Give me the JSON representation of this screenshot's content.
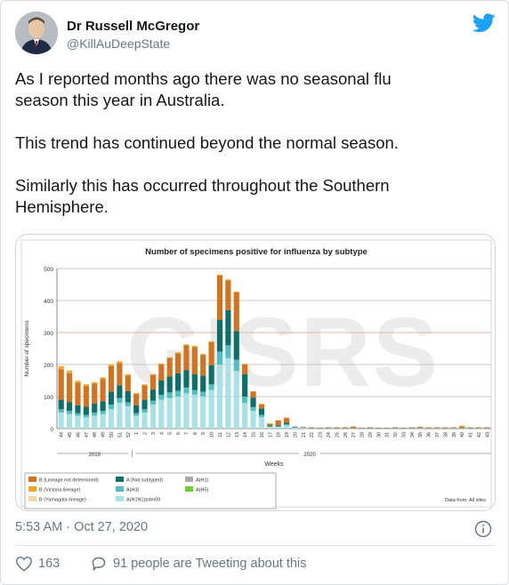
{
  "author": {
    "display_name": "Dr Russell McGregor",
    "handle": "@KillAuDeepState"
  },
  "tweet": {
    "paragraphs": [
      [
        "As I reported months ago there was no seasonal flu",
        "season this year in Australia."
      ],
      [
        "This trend has continued beyond the normal season."
      ],
      [
        "Similarly this has occurred throughout the Southern",
        "Hemisphere."
      ]
    ]
  },
  "footer": {
    "timestamp": "5:53 AM · Oct 27, 2020",
    "likes_count": "163",
    "reply_text": "91 people are Tweeting about this"
  },
  "colors": {
    "twitter_blue": "#1da1f2",
    "text_gray": "#657786",
    "heart": "#657786"
  },
  "chart_data": {
    "type": "bar",
    "title": "Number of specimens positive for influenza by subtype",
    "ylabel": "Number of specimens",
    "xlabel": "Weeks",
    "ylim": [
      0,
      500
    ],
    "yticks": [
      0,
      100,
      200,
      300,
      400,
      500
    ],
    "year_labels": [
      "2019",
      "2020"
    ],
    "watermark": "GISRS",
    "source_note": "Data from: All sites",
    "categories": [
      "44",
      "45",
      "46",
      "47",
      "48",
      "49",
      "50",
      "51",
      "52",
      "1",
      "2",
      "3",
      "4",
      "5",
      "6",
      "7",
      "8",
      "9",
      "10",
      "11",
      "12",
      "13",
      "14",
      "15",
      "16",
      "17",
      "18",
      "19",
      "20",
      "21",
      "22",
      "23",
      "24",
      "25",
      "26",
      "27",
      "28",
      "29",
      "30",
      "31",
      "32",
      "33",
      "34",
      "35",
      "36",
      "37",
      "38",
      "39",
      "40",
      "41",
      "42",
      "43"
    ],
    "series": [
      {
        "name": "A(H1N1)pdm09",
        "color": "#a8e2e6",
        "values": [
          50,
          45,
          40,
          35,
          40,
          45,
          60,
          80,
          70,
          40,
          50,
          75,
          90,
          95,
          100,
          110,
          105,
          100,
          120,
          200,
          220,
          180,
          80,
          55,
          35,
          5,
          5,
          10,
          3,
          2,
          1,
          1,
          1,
          1,
          1,
          1,
          1,
          1,
          1,
          1,
          1,
          1,
          1,
          1,
          1,
          1,
          1,
          1,
          1,
          1,
          1,
          1
        ]
      },
      {
        "name": "A(H3)",
        "color": "#4fbfc6",
        "values": [
          10,
          10,
          8,
          8,
          10,
          10,
          15,
          15,
          12,
          8,
          10,
          12,
          15,
          18,
          18,
          18,
          15,
          15,
          18,
          40,
          40,
          35,
          20,
          12,
          8,
          2,
          2,
          3,
          1,
          1,
          0,
          0,
          0,
          0,
          0,
          0,
          0,
          0,
          0,
          0,
          0,
          0,
          0,
          0,
          0,
          0,
          0,
          0,
          0,
          0,
          0,
          0
        ]
      },
      {
        "name": "A (Not subtyped)",
        "color": "#0e6e6a",
        "values": [
          30,
          28,
          25,
          25,
          28,
          30,
          40,
          40,
          35,
          25,
          30,
          35,
          45,
          50,
          55,
          55,
          50,
          50,
          60,
          100,
          110,
          90,
          70,
          30,
          20,
          3,
          3,
          5,
          2,
          1,
          1,
          1,
          1,
          1,
          1,
          1,
          1,
          1,
          1,
          1,
          1,
          1,
          1,
          1,
          1,
          1,
          1,
          1,
          1,
          1,
          1,
          1
        ]
      },
      {
        "name": "B (Lineage not determined)",
        "color": "#d2731f",
        "values": [
          95,
          90,
          70,
          65,
          62,
          70,
          80,
          70,
          48,
          35,
          45,
          45,
          50,
          57,
          62,
          77,
          85,
          65,
          72,
          138,
          93,
          120,
          30,
          18,
          12,
          5,
          15,
          15,
          0,
          1,
          2,
          1,
          2,
          2,
          2,
          4,
          1,
          2,
          1,
          1,
          2,
          1,
          2,
          3,
          2,
          2,
          2,
          2,
          4,
          2,
          2,
          2
        ]
      },
      {
        "name": "B (Victoria lineage)",
        "color": "#f5a623",
        "values": [
          10,
          8,
          6,
          5,
          5,
          5,
          5,
          5,
          5,
          3,
          3,
          3,
          3,
          3,
          3,
          3,
          3,
          3,
          3,
          3,
          3,
          3,
          2,
          2,
          2,
          1,
          1,
          1,
          0,
          0,
          0,
          0,
          0,
          0,
          0,
          1,
          0,
          0,
          0,
          0,
          0,
          0,
          0,
          1,
          0,
          0,
          0,
          0,
          3,
          0,
          0,
          0
        ]
      },
      {
        "name": "B (Yamagata lineage)",
        "color": "#f7d9a8",
        "values": [
          0,
          0,
          0,
          0,
          0,
          0,
          0,
          0,
          0,
          0,
          0,
          0,
          0,
          0,
          0,
          0,
          0,
          0,
          0,
          0,
          0,
          0,
          0,
          0,
          0,
          0,
          0,
          0,
          0,
          0,
          0,
          0,
          0,
          0,
          0,
          0,
          0,
          0,
          0,
          0,
          0,
          0,
          0,
          0,
          0,
          0,
          0,
          0,
          0,
          0,
          0,
          0
        ]
      },
      {
        "name": "A(H1)",
        "color": "#a9a9a9",
        "values": [
          0,
          0,
          0,
          0,
          0,
          0,
          0,
          0,
          0,
          0,
          0,
          0,
          0,
          0,
          0,
          0,
          0,
          0,
          0,
          0,
          0,
          0,
          0,
          0,
          0,
          0,
          0,
          0,
          0,
          0,
          0,
          0,
          0,
          0,
          0,
          0,
          0,
          0,
          0,
          0,
          0,
          0,
          0,
          0,
          0,
          0,
          0,
          0,
          0,
          0,
          0,
          0
        ]
      },
      {
        "name": "A(H5)",
        "color": "#6bd12a",
        "values": [
          0,
          0,
          0,
          0,
          0,
          0,
          0,
          0,
          0,
          0,
          0,
          0,
          0,
          0,
          0,
          0,
          0,
          0,
          0,
          0,
          0,
          0,
          0,
          0,
          0,
          0,
          0,
          0,
          0,
          0,
          0,
          0,
          0,
          0,
          0,
          0,
          0,
          0,
          0,
          0,
          0,
          0,
          0,
          0,
          0,
          0,
          0,
          0,
          0,
          0,
          0,
          0
        ]
      }
    ],
    "legend": [
      {
        "label": "B (Lineage not determined)",
        "color": "#d2731f"
      },
      {
        "label": "A (Not subtyped)",
        "color": "#0e6e6a"
      },
      {
        "label": "A(H1)",
        "color": "#a9a9a9"
      },
      {
        "label": "B (Victoria lineage)",
        "color": "#f5a623"
      },
      {
        "label": "A(H3)",
        "color": "#4fbfc6"
      },
      {
        "label": "A(H5)",
        "color": "#6bd12a"
      },
      {
        "label": "B (Yamagata lineage)",
        "color": "#f7d9a8"
      },
      {
        "label": "A(H1N1)pdm09",
        "color": "#a8e2e6"
      }
    ],
    "legend_placement": "bottom",
    "grid": true
  }
}
